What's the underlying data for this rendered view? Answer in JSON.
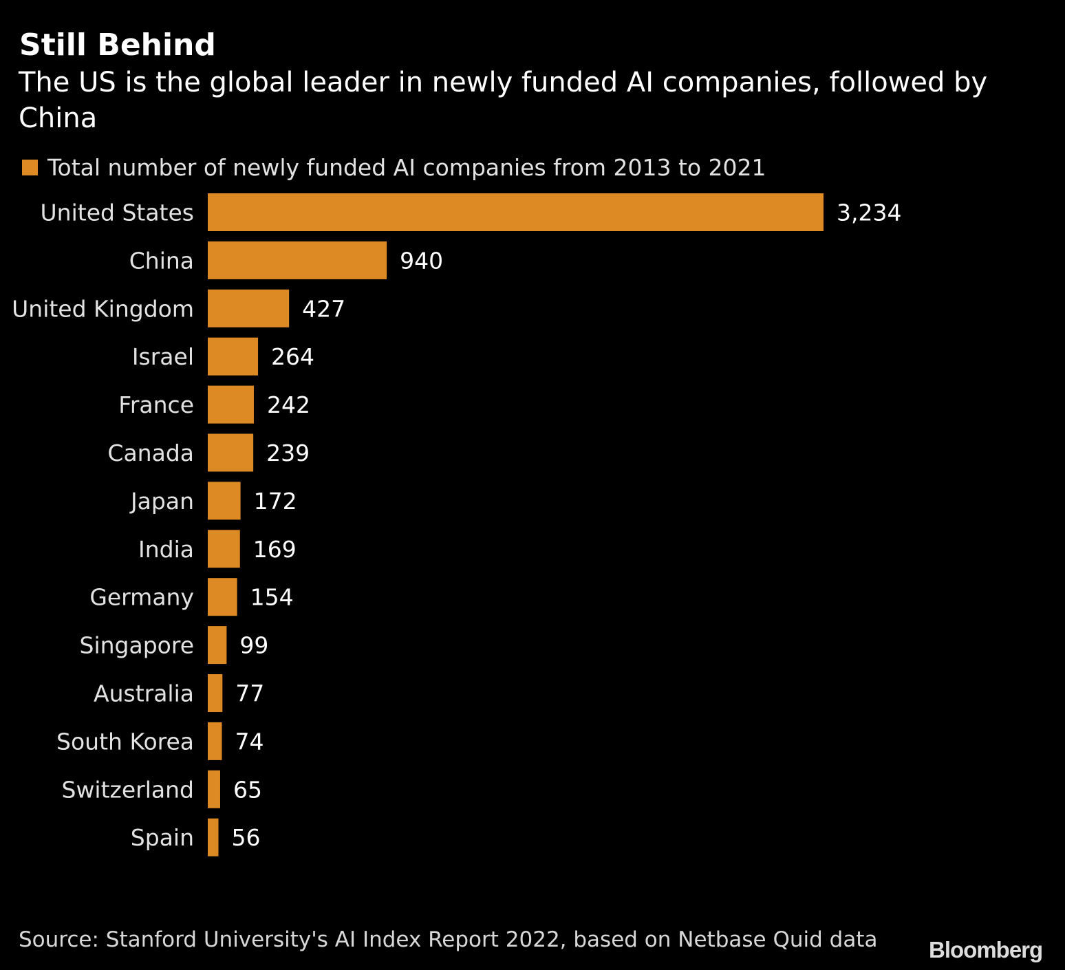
{
  "chart_data": {
    "type": "bar",
    "orientation": "horizontal",
    "title": "Still Behind",
    "subtitle": "The US is the global leader in newly funded AI companies, followed by China",
    "categories": [
      "United States",
      "China",
      "United Kingdom",
      "Israel",
      "France",
      "Canada",
      "Japan",
      "India",
      "Germany",
      "Singapore",
      "Australia",
      "South Korea",
      "Switzerland",
      "Spain"
    ],
    "series": [
      {
        "name": "Total number of newly funded AI companies from 2013 to 2021",
        "values": [
          3234,
          940,
          427,
          264,
          242,
          239,
          172,
          169,
          154,
          99,
          77,
          74,
          65,
          56
        ],
        "color": "#dd8a24"
      }
    ],
    "value_labels": [
      "3,234",
      "940",
      "427",
      "264",
      "242",
      "239",
      "172",
      "169",
      "154",
      "99",
      "77",
      "74",
      "65",
      "56"
    ],
    "xlim": [
      0,
      3234
    ],
    "grid": false,
    "legend_position": "top-left",
    "source": "Source: Stanford University's AI Index Report 2022, based on Netbase Quid data",
    "logo": "Bloomberg"
  }
}
